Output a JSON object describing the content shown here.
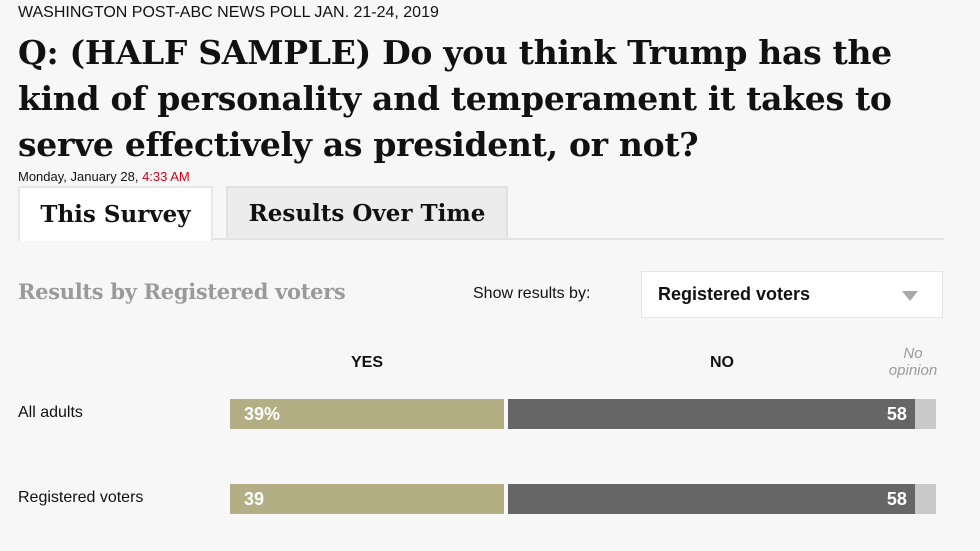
{
  "header": {
    "kicker": "WASHINGTON POST-ABC NEWS POLL JAN. 21-24, 2019",
    "title": "Q: (HALF SAMPLE) Do you think Trump has the kind of personality and temperament it takes to serve effectively as president, or not?",
    "date_prefix": "Monday, January 28, ",
    "time": "4:33 AM"
  },
  "tabs": [
    {
      "label": "This Survey",
      "active": true
    },
    {
      "label": "Results Over Time",
      "active": false
    }
  ],
  "controls": {
    "results_heading": "Results by Registered voters",
    "show_results_label": "Show results by:",
    "selected_option": "Registered voters"
  },
  "colors": {
    "yes": "#b3ae84",
    "no": "#666666",
    "no_opinion": "#c9c9c9",
    "time_accent": "#d0021b"
  },
  "chart_data": {
    "type": "bar",
    "orientation": "horizontal-stacked",
    "title": "Do you think Trump has the kind of personality and temperament it takes to serve effectively as president, or not?",
    "categories": [
      "All adults",
      "Registered voters"
    ],
    "series": [
      {
        "name": "YES",
        "values": [
          39,
          39
        ],
        "labels": [
          "39%",
          "39"
        ]
      },
      {
        "name": "NO",
        "values": [
          58,
          58
        ],
        "labels": [
          "58",
          "58"
        ]
      },
      {
        "name": "No opinion",
        "values": [
          3,
          3
        ],
        "labels": [
          "",
          ""
        ]
      }
    ],
    "column_headers": {
      "yes": "YES",
      "no": "NO",
      "no_opinion": "No opinion"
    },
    "xlim": [
      0,
      100
    ],
    "unit": "percent"
  }
}
